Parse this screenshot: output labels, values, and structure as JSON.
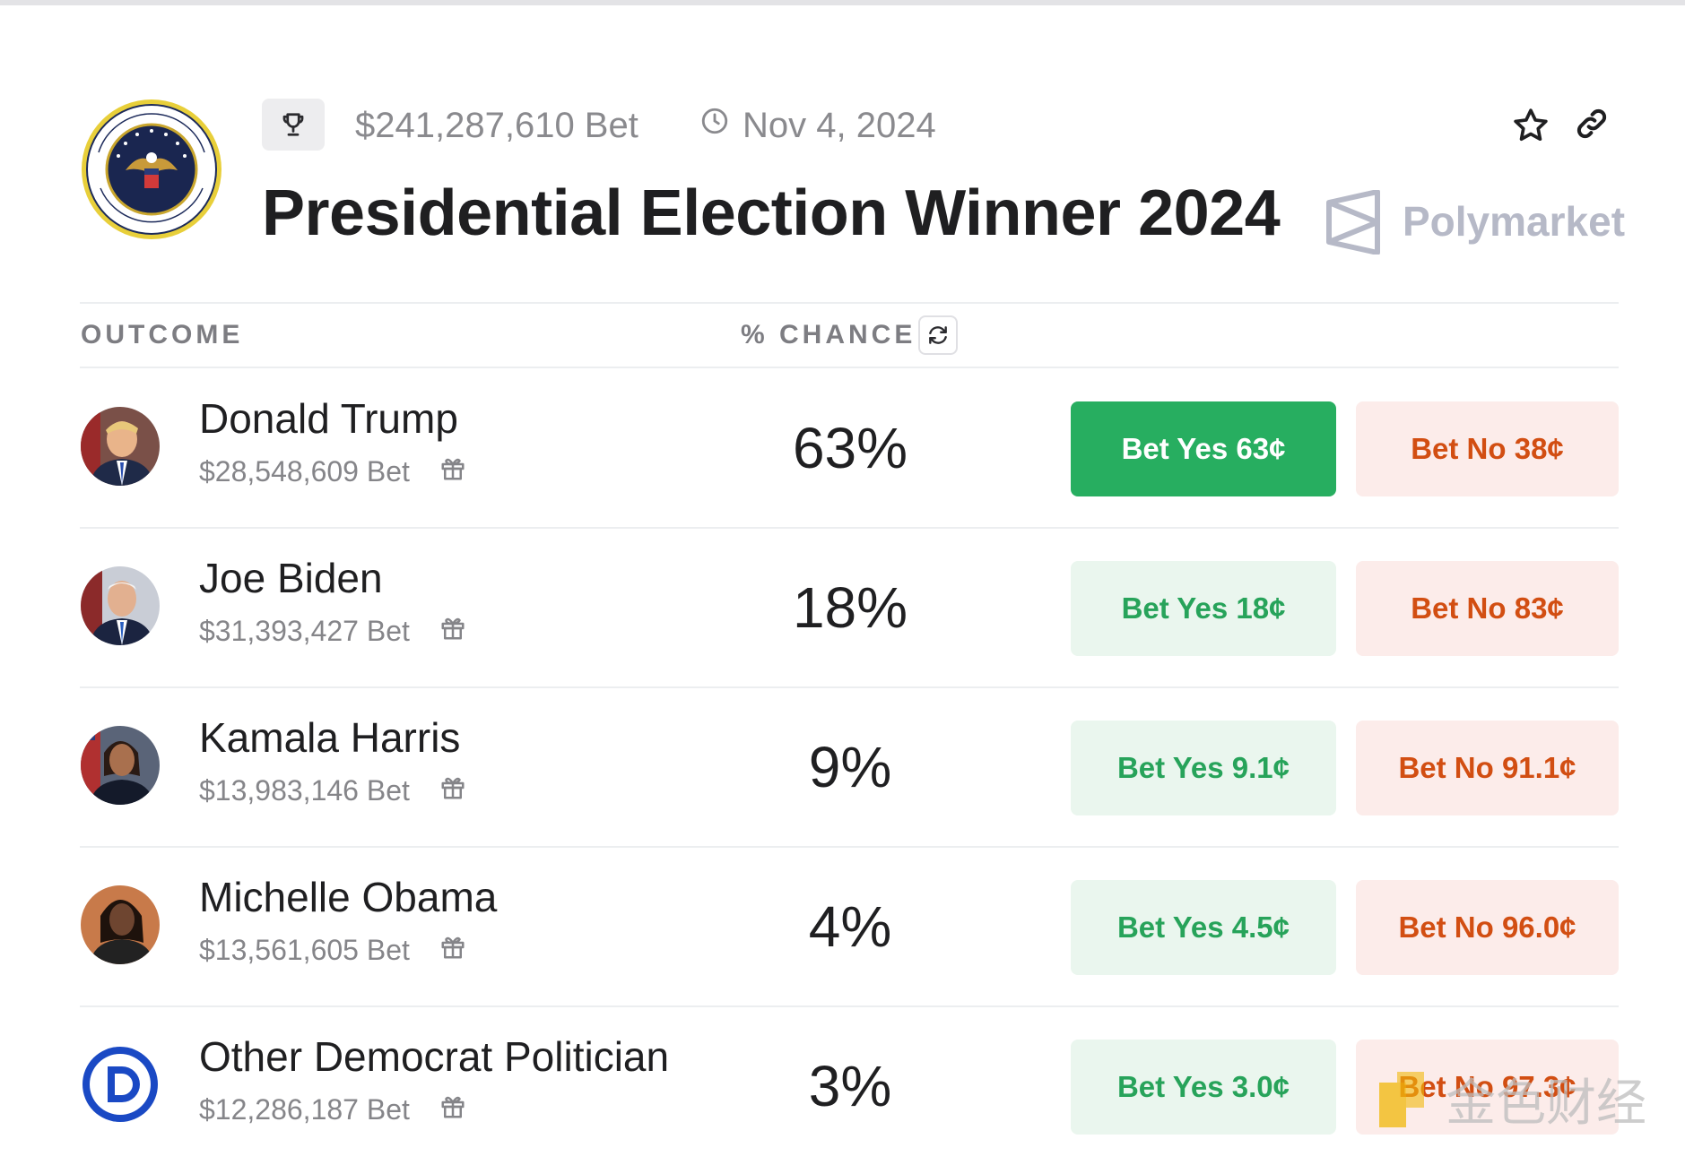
{
  "header": {
    "volume": "$241,287,610 Bet",
    "date": "Nov 4, 2024",
    "title": "Presidential Election Winner 2024",
    "source_name": "Polymarket"
  },
  "table": {
    "outcome_header": "OUTCOME",
    "chance_header": "% CHANCE"
  },
  "rows": [
    {
      "name": "Donald Trump",
      "bet": "$28,548,609 Bet",
      "chance": "63%",
      "yes": "Bet Yes 63¢",
      "no": "Bet No 38¢"
    },
    {
      "name": "Joe Biden",
      "bet": "$31,393,427 Bet",
      "chance": "18%",
      "yes": "Bet Yes 18¢",
      "no": "Bet No 83¢"
    },
    {
      "name": "Kamala Harris",
      "bet": "$13,983,146 Bet",
      "chance": "9%",
      "yes": "Bet Yes 9.1¢",
      "no": "Bet No 91.1¢"
    },
    {
      "name": "Michelle Obama",
      "bet": "$13,561,605 Bet",
      "chance": "4%",
      "yes": "Bet Yes 4.5¢",
      "no": "Bet No 96.0¢"
    },
    {
      "name": "Other Democrat Politician",
      "bet": "$12,286,187 Bet",
      "chance": "3%",
      "yes": "Bet Yes 3.0¢",
      "no": "Bet No 97.3¢"
    }
  ],
  "watermark": {
    "text": "金色财经"
  },
  "colors": {
    "yes_active": "#27ae60",
    "yes_bg": "#eaf6ee",
    "yes_text": "#27a35a",
    "no_bg": "#fcecea",
    "no_text": "#d24e12"
  }
}
